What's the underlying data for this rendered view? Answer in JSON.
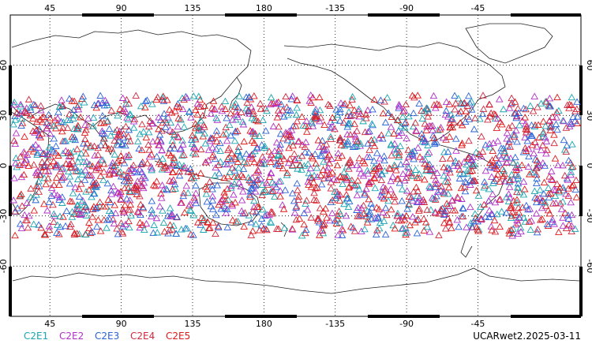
{
  "map": {
    "projection": "cylindrical equidistant (Pacific-centered)",
    "lon_range": [
      20,
      380
    ],
    "lat_range": [
      -90,
      90
    ],
    "top_lon_labels": [
      "45",
      "90",
      "135",
      "180",
      "-135",
      "-90",
      "-45"
    ],
    "bottom_lon_labels": [
      "45",
      "90",
      "135",
      "180",
      "-135",
      "-90",
      "-45"
    ],
    "lon_label_values": [
      45,
      90,
      135,
      180,
      225,
      270,
      315
    ],
    "lat_labels": [
      "60",
      "30",
      "0",
      "-30",
      "-60"
    ],
    "lat_label_values": [
      60,
      30,
      0,
      -30,
      -60
    ],
    "grid": "dotted",
    "marker": "open-triangle",
    "observation_lat_band": [
      -42,
      42
    ]
  },
  "legend": {
    "items": [
      {
        "label": "C2E1",
        "color": "#1aa6b0"
      },
      {
        "label": "C2E2",
        "color": "#b030c8"
      },
      {
        "label": "C2E3",
        "color": "#2a62d8"
      },
      {
        "label": "C2E4",
        "color": "#d0283c"
      },
      {
        "label": "C2E5",
        "color": "#e01818"
      }
    ]
  },
  "footer": {
    "label": "UCARwet2.2025-03-11"
  }
}
